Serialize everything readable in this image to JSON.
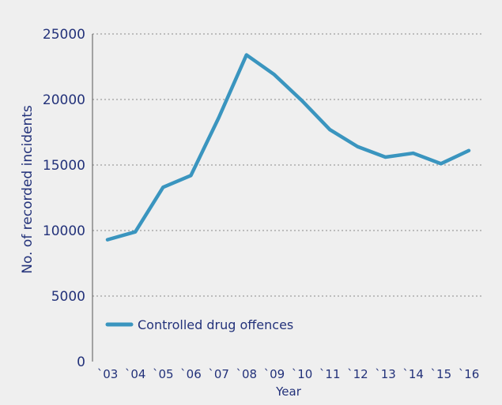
{
  "chart_data": {
    "type": "line",
    "title": "",
    "xlabel": "Year",
    "ylabel": "No. of recorded incidents",
    "categories": [
      "`03",
      "`04",
      "`05",
      "`06",
      "`07",
      "`08",
      "`09",
      "`10",
      "`11",
      "`12",
      "`13",
      "`14",
      "`15",
      "`16"
    ],
    "series": [
      {
        "name": "Controlled drug offences",
        "color": "#3a95bf",
        "values": [
          9300,
          9900,
          13300,
          14200,
          18600,
          23400,
          21900,
          19900,
          17700,
          16400,
          15600,
          15900,
          15100,
          16100
        ]
      }
    ],
    "ylim": [
      0,
      25000
    ],
    "yticks": [
      0,
      5000,
      10000,
      15000,
      20000,
      25000
    ],
    "grid": true,
    "legend_position": "bottom-left",
    "colors": {
      "axis_text": "#23327a",
      "grid": "#8a8a8a",
      "background": "#efefef"
    }
  }
}
